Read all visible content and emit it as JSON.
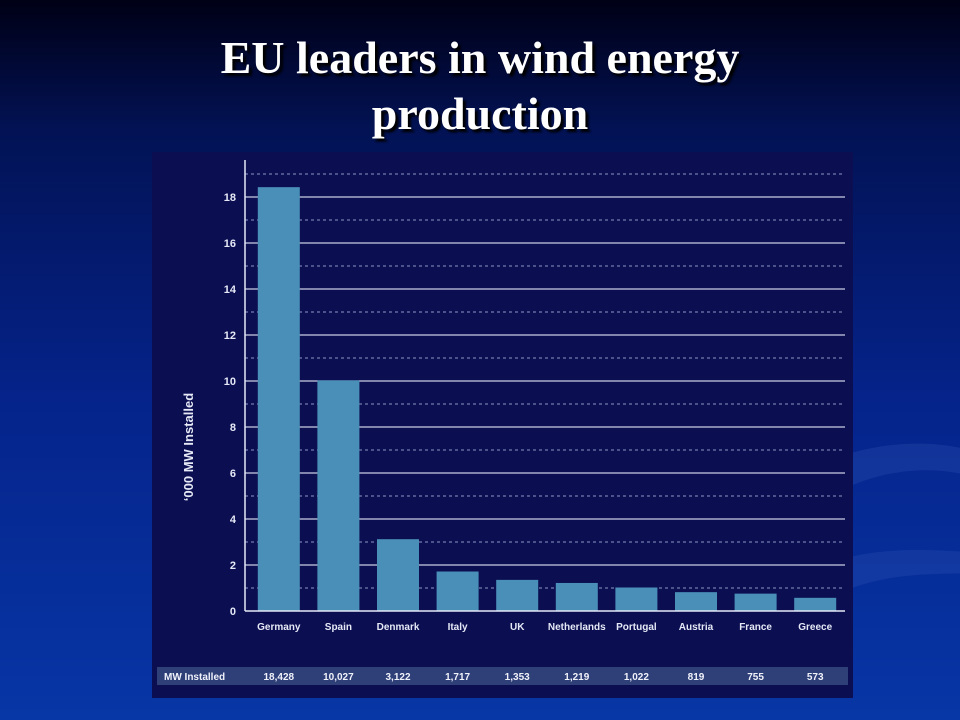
{
  "slide": {
    "title_line1": "EU leaders in wind energy",
    "title_line2": "production"
  },
  "colors": {
    "bar": "#4a8fb8",
    "panel": "#0b0f52",
    "table_row": "#2f3f78"
  },
  "chart_data": {
    "type": "bar",
    "title": "",
    "xlabel": "",
    "ylabel": "‘000 MW Installed",
    "ylim": [
      0,
      20
    ],
    "yticks": [
      0,
      2,
      4,
      6,
      8,
      10,
      12,
      14,
      16,
      18
    ],
    "grid": true,
    "categories": [
      "Germany",
      "Spain",
      "Denmark",
      "Italy",
      "UK",
      "Netherlands",
      "Portugal",
      "Austria",
      "France",
      "Greece"
    ],
    "values": [
      18.428,
      10.027,
      3.122,
      1.717,
      1.353,
      1.219,
      1.022,
      0.819,
      0.755,
      0.573
    ],
    "table": {
      "row_label": "MW Installed",
      "values": [
        "18,428",
        "10,027",
        "3,122",
        "1,717",
        "1,353",
        "1,219",
        "1,022",
        "819",
        "755",
        "573"
      ]
    }
  }
}
